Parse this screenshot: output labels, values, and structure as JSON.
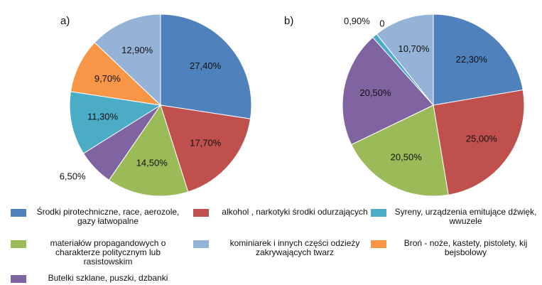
{
  "legend": [
    {
      "name": "Środki pirotechniczne, race, aerozole, gazy łatwopalne",
      "color": "#4f81bd"
    },
    {
      "name": "alkohol , narkotyki  środki odurzających",
      "color": "#c0504d"
    },
    {
      "name": "Syreny, urządzenia emitujące dźwięk, wwuzele",
      "color": "#4bacc6"
    },
    {
      "name": "materiałów propagandowych o charakterze politycznym lub rasistowskim",
      "color": "#9bbb59"
    },
    {
      "name": "kominiarek i innych części odzieży zakrywających twarz",
      "color": "#95b3d7"
    },
    {
      "name": "Broń - noże, kastety, pistolety, kij bejsbolowy",
      "color": "#f79646"
    },
    {
      "name": "Butelki szklane, puszki, dzbanki",
      "color": "#8064a2"
    }
  ],
  "chart_data": [
    {
      "type": "pie",
      "title": "a)",
      "slices": [
        0,
        1,
        3,
        6,
        2,
        5,
        4
      ],
      "values": [
        27.4,
        17.7,
        14.5,
        6.5,
        11.3,
        9.7,
        12.9
      ],
      "value_labels": [
        "27,40%",
        "17,70%",
        "14,50%",
        "6,50%",
        "11,30%",
        "9,70%",
        "12,90%"
      ]
    },
    {
      "type": "pie",
      "title": "b)",
      "slices": [
        0,
        1,
        3,
        6,
        2,
        5,
        4
      ],
      "values": [
        22.3,
        25.0,
        20.5,
        20.5,
        0.9,
        0,
        10.7
      ],
      "value_labels": [
        "22,30%",
        "25,00%",
        "20,50%",
        "20,50%",
        "0,90%",
        "0",
        "10,70%"
      ]
    }
  ]
}
